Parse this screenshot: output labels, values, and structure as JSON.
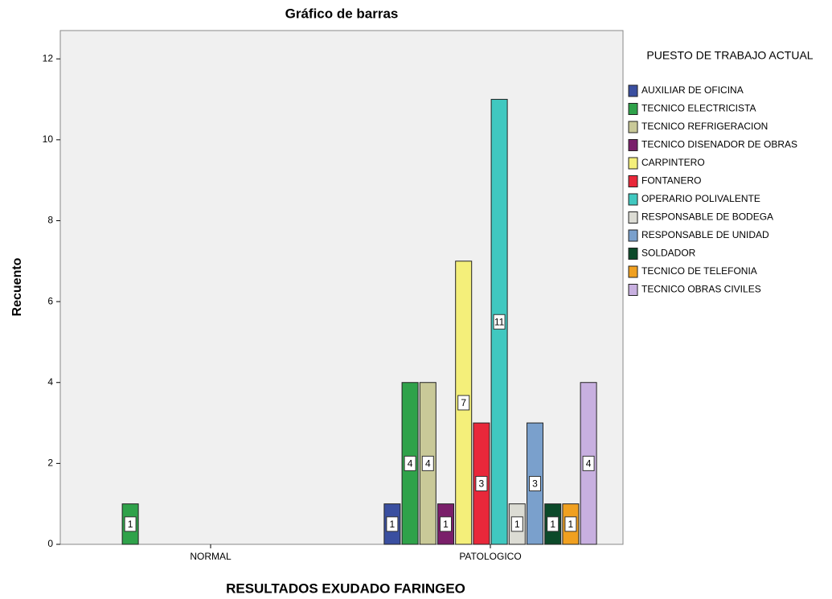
{
  "chart_data": {
    "type": "bar",
    "title": "Gráfico de barras",
    "x_label": "RESULTADOS EXUDADO FARINGEO",
    "y_label": "Recuento",
    "legend_title": "PUESTO DE TRABAJO ACTUAL",
    "legend_position": "right",
    "categories": [
      "NORMAL",
      "PATOLOGICO"
    ],
    "series": [
      {
        "name": "AUXILIAR DE OFICINA",
        "color": "#3a4fa0",
        "values": [
          null,
          1
        ]
      },
      {
        "name": "TECNICO ELECTRICISTA",
        "color": "#2fa24a",
        "values": [
          1,
          4
        ]
      },
      {
        "name": "TECNICO REFRIGERACION",
        "color": "#c9c998",
        "values": [
          null,
          4
        ]
      },
      {
        "name": "TECNICO DISENADOR DE OBRAS",
        "color": "#7a1f6a",
        "values": [
          null,
          1
        ]
      },
      {
        "name": "CARPINTERO",
        "color": "#f4ef7a",
        "values": [
          null,
          7
        ]
      },
      {
        "name": "FONTANERO",
        "color": "#e8283a",
        "values": [
          null,
          3
        ]
      },
      {
        "name": "OPERARIO POLIVALENTE",
        "color": "#40c8c0",
        "values": [
          null,
          11
        ]
      },
      {
        "name": "RESPONSABLE DE BODEGA",
        "color": "#dcdcd4",
        "values": [
          null,
          1
        ]
      },
      {
        "name": "RESPONSABLE DE UNIDAD",
        "color": "#7aa0cc",
        "values": [
          null,
          3
        ]
      },
      {
        "name": "SOLDADOR",
        "color": "#0c4a2a",
        "values": [
          null,
          1
        ]
      },
      {
        "name": "TECNICO DE TELEFONIA",
        "color": "#f0a020",
        "values": [
          null,
          1
        ]
      },
      {
        "name": "TECNICO OBRAS CIVILES",
        "color": "#c8b0e0",
        "values": [
          null,
          4
        ]
      }
    ],
    "ylim": [
      0,
      12.7
    ],
    "yticks": [
      0,
      2,
      4,
      6,
      8,
      10,
      12
    ],
    "grid": false
  }
}
